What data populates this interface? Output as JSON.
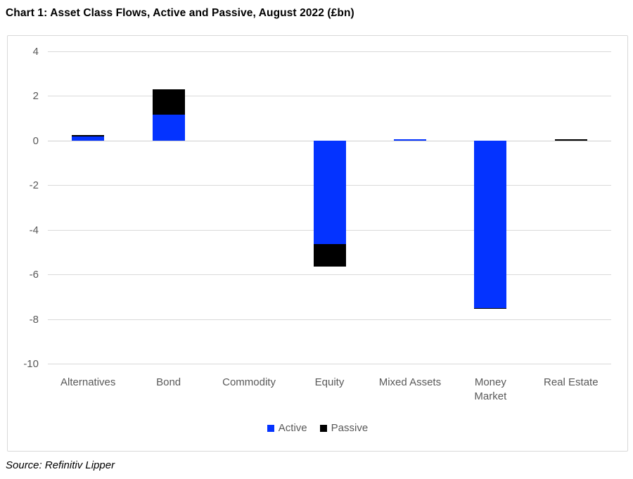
{
  "page": {
    "title": "Chart 1: Asset Class Flows, Active and Passive, August 2022 (£bn)",
    "source": "Source: Refinitiv Lipper"
  },
  "chart_data": {
    "type": "bar",
    "stacked": true,
    "title": "Chart 1: Asset Class Flows, Active and Passive, August 2022 (£bn)",
    "categories": [
      "Alternatives",
      "Bond",
      "Commodity",
      "Equity",
      "Mixed Assets",
      "Money Market",
      "Real Estate"
    ],
    "category_label_lines": [
      [
        "Alternatives"
      ],
      [
        "Bond"
      ],
      [
        "Commodity"
      ],
      [
        "Equity"
      ],
      [
        "Mixed Assets"
      ],
      [
        "Money",
        "Market"
      ],
      [
        "Real Estate"
      ]
    ],
    "series": [
      {
        "name": "Active",
        "color": "#0433ff",
        "values": [
          0.2,
          1.15,
          0,
          -4.65,
          0.07,
          -7.5,
          0
        ]
      },
      {
        "name": "Passive",
        "color": "#000000",
        "values": [
          0.05,
          1.15,
          0,
          -1.0,
          0,
          -0.05,
          0.05
        ]
      }
    ],
    "xlabel": "",
    "ylabel": "",
    "ylim": [
      -10,
      4
    ],
    "yticks": [
      4,
      2,
      0,
      -2,
      -4,
      -6,
      -8,
      -10
    ],
    "grid": "horizontal",
    "legend_position": "bottom"
  },
  "style": {
    "active_color": "#0433ff",
    "passive_color": "#000000",
    "gridline_color": "#d9d9d9",
    "axis_text_color": "#595959",
    "frame_border_color": "#d9d9d9"
  }
}
